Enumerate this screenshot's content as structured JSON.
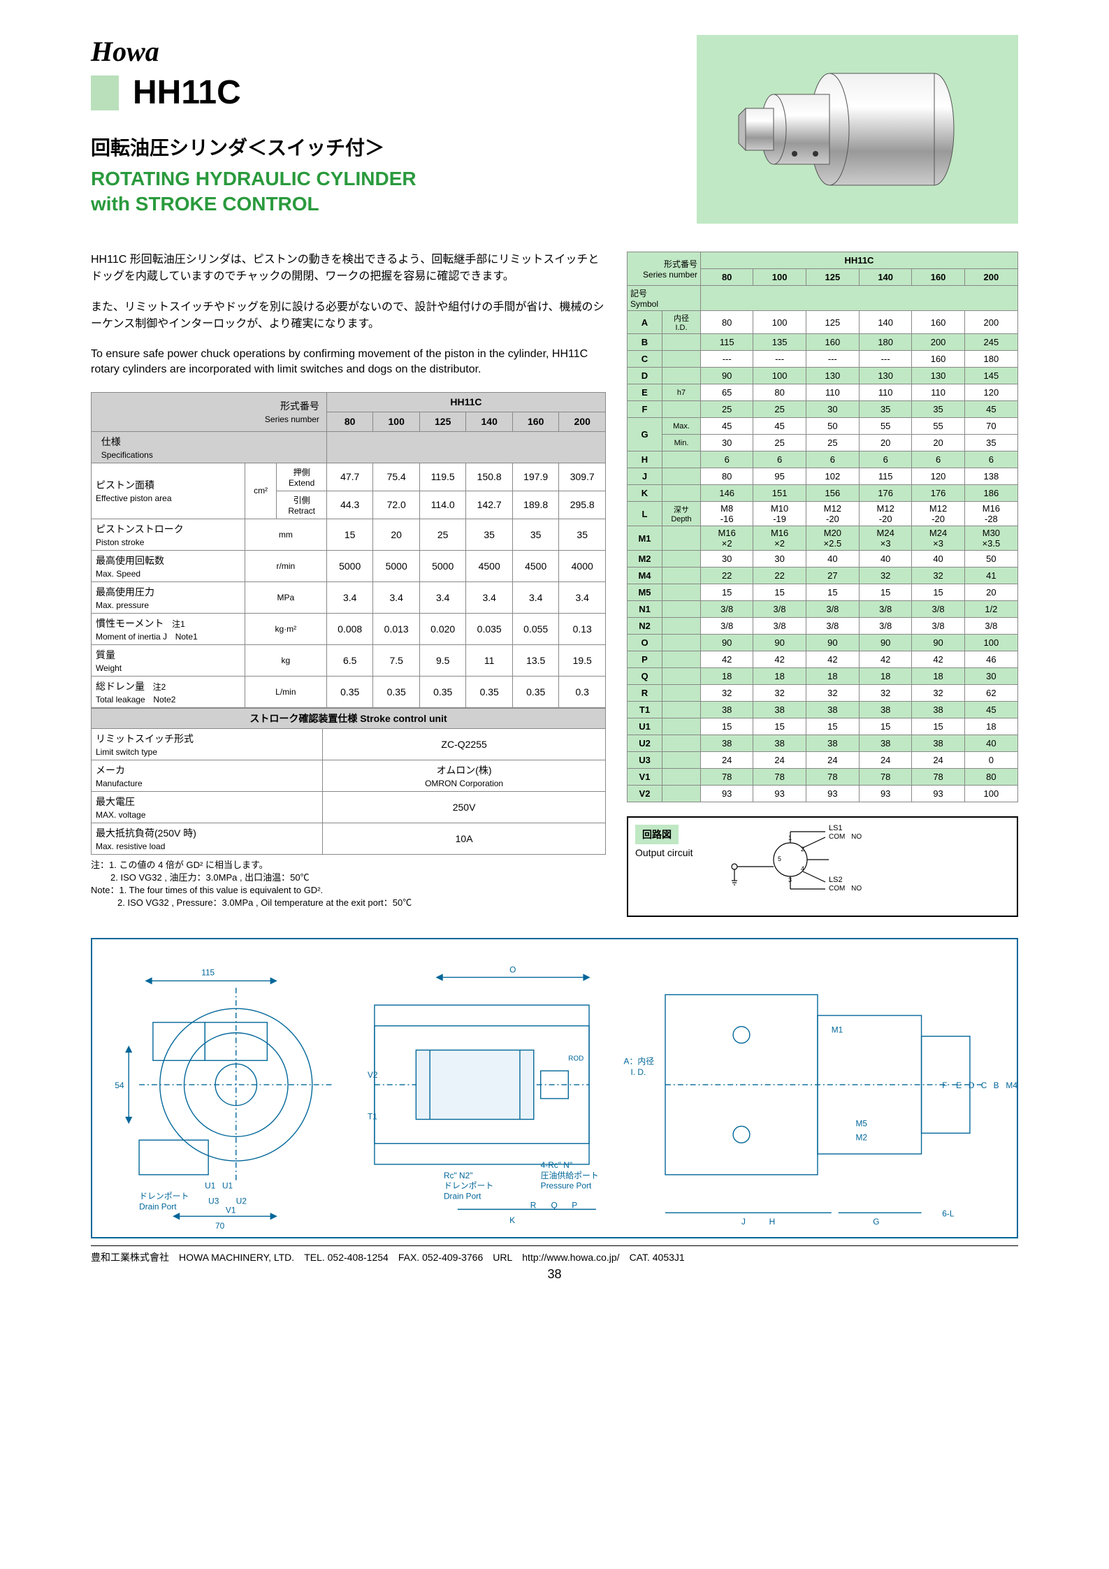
{
  "brand": "Howa",
  "model": "HH11C",
  "jp_title": "回転油圧シリンダ＜スイッチ付＞",
  "en_title_l1": "ROTATING HYDRAULIC CYLINDER",
  "en_title_l2": "with  STROKE CONTROL",
  "jp_desc_p1": "HH11C 形回転油圧シリンダは、ピストンの動きを検出できるよう、回転継手部にリミットスイッチとドッグを内蔵していますのでチャックの開閉、ワークの把握を容易に確認できます。",
  "jp_desc_p2": "また、リミットスイッチやドッグを別に設ける必要がないので、設計や組付けの手間が省け、機械のシーケンス制御やインターロックが、より確実になります。",
  "en_desc": "To ensure safe power chuck operations by confirming movement of the piston in the cylinder, HH11C rotary cylinders are incorporated with limit switches and dogs on the distributor.",
  "series_label_jp": "形式番号",
  "series_label_en": "Series  number",
  "series_name": "HH11C",
  "sizes": [
    "80",
    "100",
    "125",
    "140",
    "160",
    "200"
  ],
  "spec_label_jp": "仕様",
  "spec_label_en": "Specifications",
  "spec_rows": [
    {
      "jp": "ピストン面積",
      "en": "Effective piston area",
      "unit": "cm²",
      "sub": [
        {
          "jp": "押側",
          "en": "Extend",
          "vals": [
            "47.7",
            "75.4",
            "119.5",
            "150.8",
            "197.9",
            "309.7"
          ]
        },
        {
          "jp": "引側",
          "en": "Retract",
          "vals": [
            "44.3",
            "72.0",
            "114.0",
            "142.7",
            "189.8",
            "295.8"
          ]
        }
      ]
    },
    {
      "jp": "ピストンストローク",
      "en": "Piston stroke",
      "unit": "mm",
      "vals": [
        "15",
        "20",
        "25",
        "35",
        "35",
        "35"
      ]
    },
    {
      "jp": "最高使用回転数",
      "en": "Max.  Speed",
      "unit": "r/min",
      "vals": [
        "5000",
        "5000",
        "5000",
        "4500",
        "4500",
        "4000"
      ]
    },
    {
      "jp": "最高使用圧力",
      "en": "Max.  pressure",
      "unit": "MPa",
      "vals": [
        "3.4",
        "3.4",
        "3.4",
        "3.4",
        "3.4",
        "3.4"
      ]
    },
    {
      "jp": "慣性モーメント",
      "en": "Moment of inertia J",
      "note": "注1 Note1",
      "unit": "kg·m²",
      "vals": [
        "0.008",
        "0.013",
        "0.020",
        "0.035",
        "0.055",
        "0.13"
      ]
    },
    {
      "jp": "質量",
      "en": "Weight",
      "unit": "kg",
      "vals": [
        "6.5",
        "7.5",
        "9.5",
        "11",
        "13.5",
        "19.5"
      ]
    },
    {
      "jp": "総ドレン量",
      "en": "Total leakage",
      "note": "注2 Note2",
      "unit": "L/min",
      "vals": [
        "0.35",
        "0.35",
        "0.35",
        "0.35",
        "0.35",
        "0.3"
      ]
    }
  ],
  "stroke_unit_header": "ストローク確認装置仕様   Stroke control unit",
  "stroke_rows": [
    {
      "jp": "リミットスイッチ形式",
      "en": "Limit switch type",
      "val": "ZC-Q2255"
    },
    {
      "jp": "メーカ",
      "en": "Manufacture",
      "val_jp": "オムロン(株)",
      "val_en": "OMRON Corporation"
    },
    {
      "jp": "最大電圧",
      "en": "MAX. voltage",
      "val": "250V"
    },
    {
      "jp": "最大抵抗負荷(250V 時)",
      "en": "Max. resistive load",
      "val": "10A"
    }
  ],
  "notes_jp1": "注：1. この値の 4 倍が GD² に相当します。",
  "notes_jp2": "2. ISO VG32 , 油圧力：3.0MPa , 出口油温：50℃",
  "notes_en1": "Note：1. The four times of this value is equivalent to GD².",
  "notes_en2": "2. ISO VG32 , Pressure：3.0MPa , Oil temperature at the exit port：50℃",
  "dim_header_jp": "形式番号",
  "dim_header_en": "Series number",
  "dim_symbol_jp": "記号",
  "dim_symbol_en": "Symbol",
  "dim_rows": [
    {
      "s": "A",
      "sub_jp": "内径",
      "sub_en": "I.D.",
      "vals": [
        "80",
        "100",
        "125",
        "140",
        "160",
        "200"
      ]
    },
    {
      "s": "B",
      "g": true,
      "vals": [
        "115",
        "135",
        "160",
        "180",
        "200",
        "245"
      ]
    },
    {
      "s": "C",
      "vals": [
        "---",
        "---",
        "---",
        "---",
        "160",
        "180"
      ]
    },
    {
      "s": "D",
      "g": true,
      "vals": [
        "90",
        "100",
        "130",
        "130",
        "130",
        "145"
      ]
    },
    {
      "s": "E",
      "sub": "h7",
      "vals": [
        "65",
        "80",
        "110",
        "110",
        "110",
        "120"
      ]
    },
    {
      "s": "F",
      "g": true,
      "vals": [
        "25",
        "25",
        "30",
        "35",
        "35",
        "45"
      ]
    },
    {
      "s": "G",
      "sub": "Max.",
      "vals": [
        "45",
        "45",
        "50",
        "55",
        "55",
        "70"
      ],
      "sub2": "Min.",
      "vals2": [
        "30",
        "25",
        "25",
        "20",
        "20",
        "35"
      ]
    },
    {
      "s": "H",
      "g": true,
      "vals": [
        "6",
        "6",
        "6",
        "6",
        "6",
        "6"
      ]
    },
    {
      "s": "J",
      "vals": [
        "80",
        "95",
        "102",
        "115",
        "120",
        "138"
      ]
    },
    {
      "s": "K",
      "g": true,
      "vals": [
        "146",
        "151",
        "156",
        "176",
        "176",
        "186"
      ]
    },
    {
      "s": "L",
      "sub_jp": "深サ",
      "sub_en": "Depth",
      "vals": [
        "M8 -16",
        "M10 -19",
        "M12 -20",
        "M12 -20",
        "M12 -20",
        "M16 -28"
      ]
    },
    {
      "s": "M1",
      "g": true,
      "vals": [
        "M16 ×2",
        "M16 ×2",
        "M20 ×2.5",
        "M24 ×3",
        "M24 ×3",
        "M30 ×3.5"
      ]
    },
    {
      "s": "M2",
      "vals": [
        "30",
        "30",
        "40",
        "40",
        "40",
        "50"
      ]
    },
    {
      "s": "M4",
      "g": true,
      "vals": [
        "22",
        "22",
        "27",
        "32",
        "32",
        "41"
      ]
    },
    {
      "s": "M5",
      "vals": [
        "15",
        "15",
        "15",
        "15",
        "15",
        "20"
      ]
    },
    {
      "s": "N1",
      "g": true,
      "vals": [
        "3/8",
        "3/8",
        "3/8",
        "3/8",
        "3/8",
        "1/2"
      ]
    },
    {
      "s": "N2",
      "vals": [
        "3/8",
        "3/8",
        "3/8",
        "3/8",
        "3/8",
        "3/8"
      ]
    },
    {
      "s": "O",
      "g": true,
      "vals": [
        "90",
        "90",
        "90",
        "90",
        "90",
        "100"
      ]
    },
    {
      "s": "P",
      "vals": [
        "42",
        "42",
        "42",
        "42",
        "42",
        "46"
      ]
    },
    {
      "s": "Q",
      "g": true,
      "vals": [
        "18",
        "18",
        "18",
        "18",
        "18",
        "30"
      ]
    },
    {
      "s": "R",
      "vals": [
        "32",
        "32",
        "32",
        "32",
        "32",
        "62"
      ]
    },
    {
      "s": "T1",
      "g": true,
      "vals": [
        "38",
        "38",
        "38",
        "38",
        "38",
        "45"
      ]
    },
    {
      "s": "U1",
      "vals": [
        "15",
        "15",
        "15",
        "15",
        "15",
        "18"
      ]
    },
    {
      "s": "U2",
      "g": true,
      "vals": [
        "38",
        "38",
        "38",
        "38",
        "38",
        "40"
      ]
    },
    {
      "s": "U3",
      "vals": [
        "24",
        "24",
        "24",
        "24",
        "24",
        "0"
      ]
    },
    {
      "s": "V1",
      "g": true,
      "vals": [
        "78",
        "78",
        "78",
        "78",
        "78",
        "80"
      ]
    },
    {
      "s": "V2",
      "vals": [
        "93",
        "93",
        "93",
        "93",
        "93",
        "100"
      ]
    }
  ],
  "circuit_jp": "回路図",
  "circuit_en": "Output  circuit",
  "circuit_labels": {
    "ls1": "LS1",
    "ls2": "LS2",
    "com": "COM",
    "no": "NO",
    "nums": [
      "1",
      "2",
      "3",
      "4",
      "5"
    ]
  },
  "drawing_labels": {
    "dim115": "115",
    "dim54": "54",
    "dim70": "70",
    "dimO": "O",
    "drain_jp": "ドレンポート",
    "drain_en": "Drain Port",
    "rc_n2": "Rc\" N2\"",
    "rc4n": "4-Rc\" N\"",
    "press_jp": "圧油供給ポート",
    "press_en": "Pressure Port",
    "a_id_jp": "A：内径",
    "a_id_en": "I. D.",
    "rod": "ROD",
    "letters": [
      "U1",
      "U1",
      "U3",
      "U2",
      "V1",
      "V2",
      "T1",
      "K",
      "R",
      "Q",
      "P",
      "J",
      "H",
      "G",
      "M1",
      "M2",
      "M5",
      "F",
      "E",
      "D",
      "C",
      "B",
      "M4",
      "6-L"
    ]
  },
  "footer": {
    "company_jp": "豊和工業株式會社",
    "company_en": "HOWA MACHINERY, LTD.",
    "tel": "TEL. 052-408-1254",
    "fax": "FAX. 052-409-3766",
    "url_label": "URL",
    "url": "http://www.howa.co.jp/",
    "cat": "CAT. 4053J1"
  },
  "page_number": "38",
  "colors": {
    "green": "#c0e8c4",
    "title_green": "#2a9a3d",
    "diagram_blue": "#006699"
  }
}
